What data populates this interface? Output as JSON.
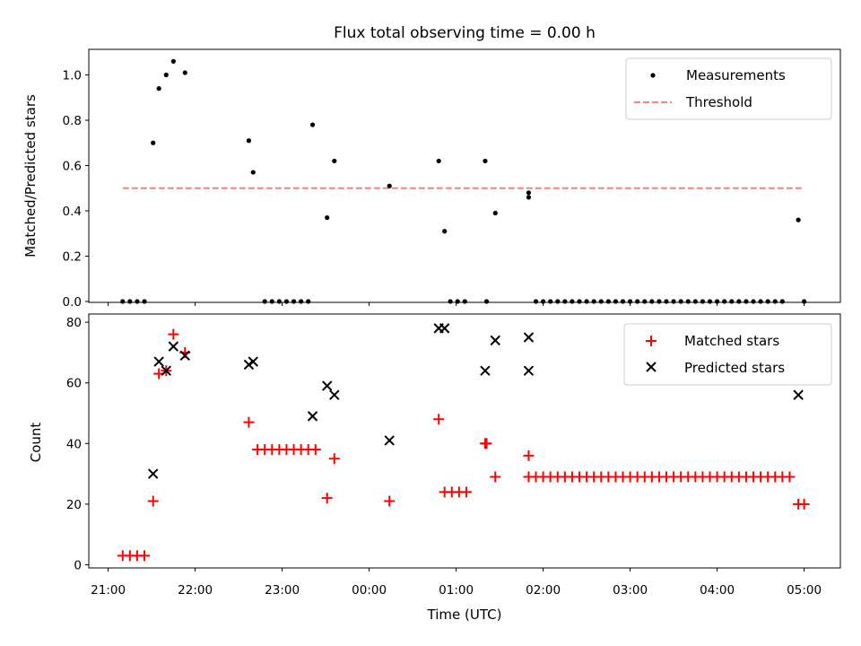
{
  "chart_data": [
    {
      "type": "scatter",
      "title": "Flux total observing time = 0.00 h",
      "xlabel": "",
      "ylabel": "Matched/Predicted stars",
      "xlim": [
        "21:00",
        "05:20"
      ],
      "ylim": [
        0,
        1.1
      ],
      "yticks": [
        "0.0",
        "0.2",
        "0.4",
        "0.6",
        "0.8",
        "1.0"
      ],
      "grid": false,
      "legend_position": "upper-right",
      "series": [
        {
          "name": "Measurements",
          "marker": "dot",
          "color": "#000000",
          "points": [
            {
              "x": "21:10",
              "y": 0.0
            },
            {
              "x": "21:15",
              "y": 0.0
            },
            {
              "x": "21:20",
              "y": 0.0
            },
            {
              "x": "21:25",
              "y": 0.0
            },
            {
              "x": "21:31",
              "y": 0.7
            },
            {
              "x": "21:35",
              "y": 0.94
            },
            {
              "x": "21:40",
              "y": 1.0
            },
            {
              "x": "21:45",
              "y": 1.06
            },
            {
              "x": "21:53",
              "y": 1.01
            },
            {
              "x": "22:37",
              "y": 0.71
            },
            {
              "x": "22:40",
              "y": 0.57
            },
            {
              "x": "22:48",
              "y": 0.0
            },
            {
              "x": "22:53",
              "y": 0.0
            },
            {
              "x": "22:58",
              "y": 0.0
            },
            {
              "x": "23:03",
              "y": 0.0
            },
            {
              "x": "23:08",
              "y": 0.0
            },
            {
              "x": "23:13",
              "y": 0.0
            },
            {
              "x": "23:18",
              "y": 0.0
            },
            {
              "x": "23:21",
              "y": 0.78
            },
            {
              "x": "23:31",
              "y": 0.37
            },
            {
              "x": "23:36",
              "y": 0.62
            },
            {
              "x": "00:14",
              "y": 0.51
            },
            {
              "x": "00:48",
              "y": 0.62
            },
            {
              "x": "00:52",
              "y": 0.31
            },
            {
              "x": "00:56",
              "y": 0.0
            },
            {
              "x": "01:01",
              "y": 0.0
            },
            {
              "x": "01:06",
              "y": 0.0
            },
            {
              "x": "01:20",
              "y": 0.62
            },
            {
              "x": "01:21",
              "y": 0.0
            },
            {
              "x": "01:27",
              "y": 0.39
            },
            {
              "x": "01:50",
              "y": 0.48
            },
            {
              "x": "01:50",
              "y": 0.46
            },
            {
              "x": "01:55",
              "y": 0.0
            },
            {
              "x": "02:00",
              "y": 0.0
            },
            {
              "x": "02:05",
              "y": 0.0
            },
            {
              "x": "02:10",
              "y": 0.0
            },
            {
              "x": "02:15",
              "y": 0.0
            },
            {
              "x": "02:20",
              "y": 0.0
            },
            {
              "x": "02:25",
              "y": 0.0
            },
            {
              "x": "02:30",
              "y": 0.0
            },
            {
              "x": "02:35",
              "y": 0.0
            },
            {
              "x": "02:40",
              "y": 0.0
            },
            {
              "x": "02:45",
              "y": 0.0
            },
            {
              "x": "02:50",
              "y": 0.0
            },
            {
              "x": "02:55",
              "y": 0.0
            },
            {
              "x": "03:00",
              "y": 0.0
            },
            {
              "x": "03:05",
              "y": 0.0
            },
            {
              "x": "03:10",
              "y": 0.0
            },
            {
              "x": "03:15",
              "y": 0.0
            },
            {
              "x": "03:20",
              "y": 0.0
            },
            {
              "x": "03:25",
              "y": 0.0
            },
            {
              "x": "03:30",
              "y": 0.0
            },
            {
              "x": "03:35",
              "y": 0.0
            },
            {
              "x": "03:40",
              "y": 0.0
            },
            {
              "x": "03:45",
              "y": 0.0
            },
            {
              "x": "03:50",
              "y": 0.0
            },
            {
              "x": "03:55",
              "y": 0.0
            },
            {
              "x": "04:00",
              "y": 0.0
            },
            {
              "x": "04:05",
              "y": 0.0
            },
            {
              "x": "04:10",
              "y": 0.0
            },
            {
              "x": "04:15",
              "y": 0.0
            },
            {
              "x": "04:20",
              "y": 0.0
            },
            {
              "x": "04:25",
              "y": 0.0
            },
            {
              "x": "04:30",
              "y": 0.0
            },
            {
              "x": "04:35",
              "y": 0.0
            },
            {
              "x": "04:40",
              "y": 0.0
            },
            {
              "x": "04:45",
              "y": 0.0
            },
            {
              "x": "04:56",
              "y": 0.36
            },
            {
              "x": "05:00",
              "y": 0.0
            }
          ]
        },
        {
          "name": "Threshold",
          "type": "line",
          "style": "dashed",
          "color": "#ff7f7f",
          "points": [
            {
              "x": "21:10",
              "y": 0.5
            },
            {
              "x": "05:00",
              "y": 0.5
            }
          ]
        }
      ]
    },
    {
      "type": "scatter",
      "title": "",
      "xlabel": "Time (UTC)",
      "ylabel": "Count",
      "xlim": [
        "21:00",
        "05:20"
      ],
      "ylim": [
        0,
        82
      ],
      "xticks": [
        "21:00",
        "22:00",
        "23:00",
        "00:00",
        "01:00",
        "02:00",
        "03:00",
        "04:00",
        "05:00"
      ],
      "yticks": [
        "0",
        "20",
        "40",
        "60",
        "80"
      ],
      "grid": false,
      "legend_position": "upper-right",
      "series": [
        {
          "name": "Matched stars",
          "marker": "plus",
          "color": "#ff0000",
          "points": [
            {
              "x": "21:10",
              "y": 3
            },
            {
              "x": "21:15",
              "y": 3
            },
            {
              "x": "21:20",
              "y": 3
            },
            {
              "x": "21:25",
              "y": 3
            },
            {
              "x": "21:31",
              "y": 21
            },
            {
              "x": "21:35",
              "y": 63
            },
            {
              "x": "21:40",
              "y": 64
            },
            {
              "x": "21:45",
              "y": 76
            },
            {
              "x": "21:53",
              "y": 70
            },
            {
              "x": "22:37",
              "y": 47
            },
            {
              "x": "22:43",
              "y": 38
            },
            {
              "x": "22:48",
              "y": 38
            },
            {
              "x": "22:53",
              "y": 38
            },
            {
              "x": "22:58",
              "y": 38
            },
            {
              "x": "23:03",
              "y": 38
            },
            {
              "x": "23:08",
              "y": 38
            },
            {
              "x": "23:13",
              "y": 38
            },
            {
              "x": "23:18",
              "y": 38
            },
            {
              "x": "23:23",
              "y": 38
            },
            {
              "x": "23:31",
              "y": 22
            },
            {
              "x": "23:36",
              "y": 35
            },
            {
              "x": "00:14",
              "y": 21
            },
            {
              "x": "00:48",
              "y": 48
            },
            {
              "x": "00:52",
              "y": 24
            },
            {
              "x": "00:57",
              "y": 24
            },
            {
              "x": "01:02",
              "y": 24
            },
            {
              "x": "01:07",
              "y": 24
            },
            {
              "x": "01:20",
              "y": 40
            },
            {
              "x": "01:21",
              "y": 40
            },
            {
              "x": "01:27",
              "y": 29
            },
            {
              "x": "01:50",
              "y": 36
            },
            {
              "x": "01:50",
              "y": 29
            },
            {
              "x": "01:55",
              "y": 29
            },
            {
              "x": "02:00",
              "y": 29
            },
            {
              "x": "02:05",
              "y": 29
            },
            {
              "x": "02:10",
              "y": 29
            },
            {
              "x": "02:15",
              "y": 29
            },
            {
              "x": "02:20",
              "y": 29
            },
            {
              "x": "02:25",
              "y": 29
            },
            {
              "x": "02:30",
              "y": 29
            },
            {
              "x": "02:35",
              "y": 29
            },
            {
              "x": "02:40",
              "y": 29
            },
            {
              "x": "02:45",
              "y": 29
            },
            {
              "x": "02:50",
              "y": 29
            },
            {
              "x": "02:55",
              "y": 29
            },
            {
              "x": "03:00",
              "y": 29
            },
            {
              "x": "03:05",
              "y": 29
            },
            {
              "x": "03:10",
              "y": 29
            },
            {
              "x": "03:15",
              "y": 29
            },
            {
              "x": "03:20",
              "y": 29
            },
            {
              "x": "03:25",
              "y": 29
            },
            {
              "x": "03:30",
              "y": 29
            },
            {
              "x": "03:35",
              "y": 29
            },
            {
              "x": "03:40",
              "y": 29
            },
            {
              "x": "03:45",
              "y": 29
            },
            {
              "x": "03:50",
              "y": 29
            },
            {
              "x": "03:55",
              "y": 29
            },
            {
              "x": "04:00",
              "y": 29
            },
            {
              "x": "04:05",
              "y": 29
            },
            {
              "x": "04:10",
              "y": 29
            },
            {
              "x": "04:15",
              "y": 29
            },
            {
              "x": "04:20",
              "y": 29
            },
            {
              "x": "04:25",
              "y": 29
            },
            {
              "x": "04:30",
              "y": 29
            },
            {
              "x": "04:35",
              "y": 29
            },
            {
              "x": "04:40",
              "y": 29
            },
            {
              "x": "04:45",
              "y": 29
            },
            {
              "x": "04:50",
              "y": 29
            },
            {
              "x": "04:56",
              "y": 20
            },
            {
              "x": "05:00",
              "y": 20
            }
          ]
        },
        {
          "name": "Predicted stars",
          "marker": "x",
          "color": "#000000",
          "points": [
            {
              "x": "21:31",
              "y": 30
            },
            {
              "x": "21:35",
              "y": 67
            },
            {
              "x": "21:40",
              "y": 64
            },
            {
              "x": "21:45",
              "y": 72
            },
            {
              "x": "21:53",
              "y": 69
            },
            {
              "x": "22:37",
              "y": 66
            },
            {
              "x": "22:40",
              "y": 67
            },
            {
              "x": "23:21",
              "y": 49
            },
            {
              "x": "23:31",
              "y": 59
            },
            {
              "x": "23:36",
              "y": 56
            },
            {
              "x": "00:14",
              "y": 41
            },
            {
              "x": "00:48",
              "y": 78
            },
            {
              "x": "00:52",
              "y": 78
            },
            {
              "x": "01:20",
              "y": 64
            },
            {
              "x": "01:27",
              "y": 74
            },
            {
              "x": "01:50",
              "y": 75
            },
            {
              "x": "01:50",
              "y": 64
            },
            {
              "x": "04:56",
              "y": 56
            }
          ]
        }
      ]
    }
  ]
}
